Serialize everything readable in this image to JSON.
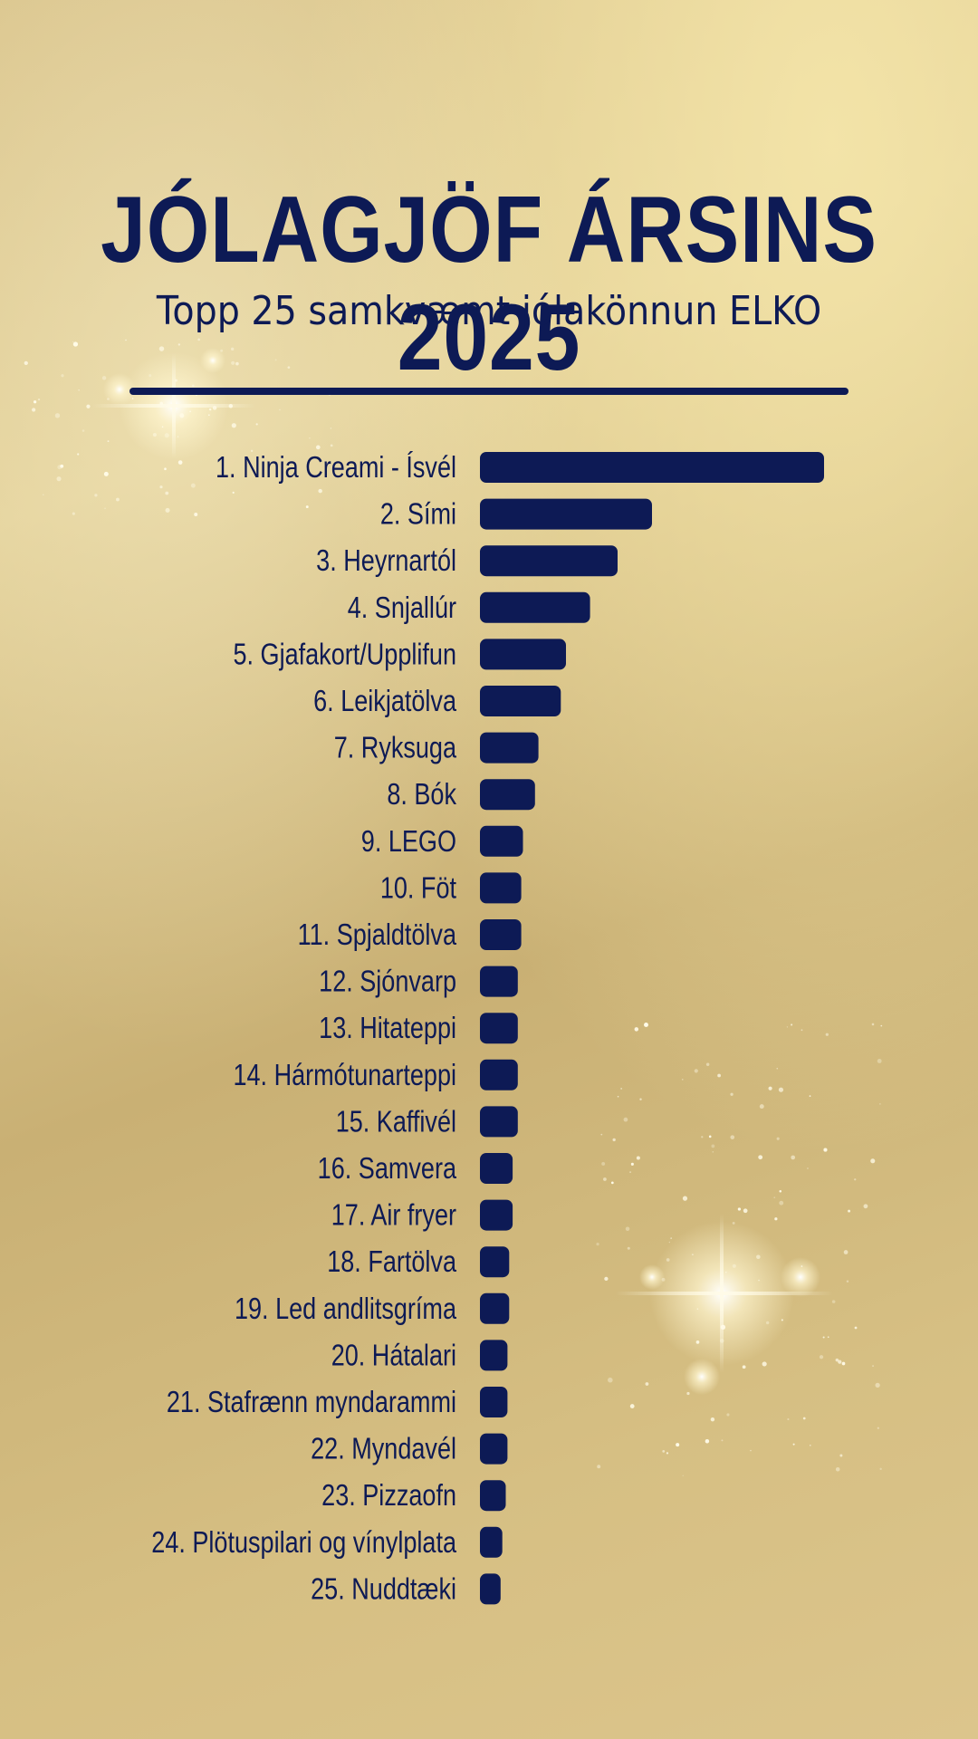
{
  "header": {
    "title": "JÓLAGJÖF ÁRSINS 2025",
    "subtitle": "Topp 25 samkvæmt jólakönnun ELKO"
  },
  "colors": {
    "bar": "#0d1a55",
    "text": "#0d1a55"
  },
  "chart_data": {
    "type": "bar",
    "orientation": "horizontal",
    "grid": false,
    "legend": "none",
    "xlim": [
      0,
      100
    ],
    "categories": [
      "1. Ninja Creami - Ísvél",
      "2. Sími",
      "3. Heyrnartól",
      "4. Snjallúr",
      "5. Gjafakort/Upplifun",
      "6. Leikjatölva",
      "7. Ryksuga",
      "8. Bók",
      "9. LEGO",
      "10. Föt",
      "11. Spjaldtölva",
      "12. Sjónvarp",
      "13. Hitateppi",
      "14. Hármótunarteppi",
      "15. Kaffivél",
      "16. Samvera",
      "17. Air fryer",
      "18. Fartölva",
      "19. Led andlitsgríma",
      "20. Hátalari",
      "21. Stafrænn myndarammi",
      "22. Myndavél",
      "23. Pizzaofn",
      "24. Plötuspilari og vínylplata",
      "25. Nuddtæki"
    ],
    "values": [
      100,
      50,
      40,
      32,
      25,
      23.5,
      17,
      16,
      12.5,
      12,
      12,
      11,
      11,
      11,
      11,
      9.5,
      9.5,
      8.5,
      8.5,
      8,
      8,
      8,
      7.5,
      6.5,
      6
    ]
  }
}
